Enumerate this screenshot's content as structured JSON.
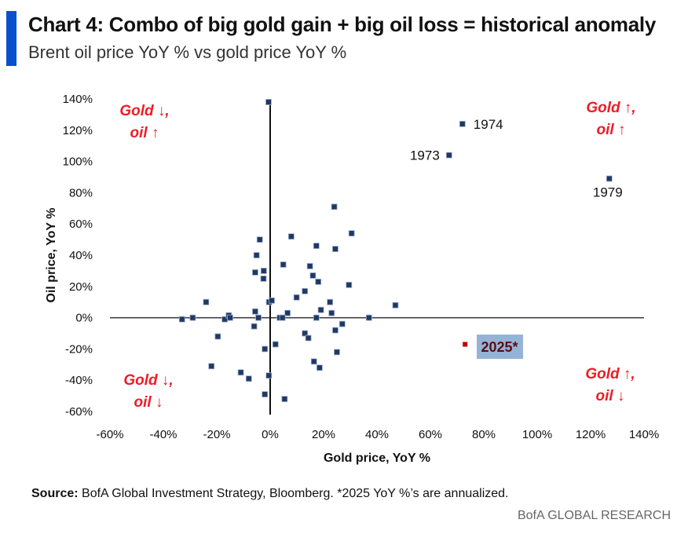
{
  "title": "Chart 4: Combo of big gold gain + big oil loss = historical anomaly",
  "subtitle": "Brent oil price YoY % vs gold price YoY %",
  "colors": {
    "accent_bar": "#0b4fd1",
    "marker": "#1f3864",
    "highlight_marker": "#c00000",
    "highlight_box": "#95b3d7",
    "quadrant_text": "#ee1c25"
  },
  "chart_data": {
    "type": "scatter",
    "title": "Chart 4: Combo of big gold gain + big oil loss = historical anomaly",
    "xlabel": "Gold price, YoY %",
    "ylabel": "Oil price, YoY %",
    "xlim": [
      -60,
      140
    ],
    "ylim": [
      -60,
      140
    ],
    "x_ticks": [
      "-60%",
      "-40%",
      "-20%",
      "0%",
      "20%",
      "40%",
      "60%",
      "80%",
      "100%",
      "120%",
      "140%"
    ],
    "y_ticks": [
      "140%",
      "120%",
      "100%",
      "80%",
      "60%",
      "40%",
      "20%",
      "0%",
      "-20%",
      "-40%",
      "-60%"
    ],
    "grid": false,
    "points": [
      [
        24,
        71
      ],
      [
        30.5,
        54
      ],
      [
        -3.9,
        50
      ],
      [
        7.9,
        52
      ],
      [
        17.3,
        46
      ],
      [
        24.4,
        44
      ],
      [
        -5.1,
        40
      ],
      [
        4.9,
        34
      ],
      [
        14.9,
        33
      ],
      [
        -5.6,
        29
      ],
      [
        -2.4,
        30
      ],
      [
        -2.5,
        25
      ],
      [
        16,
        27
      ],
      [
        18,
        23
      ],
      [
        29.5,
        21
      ],
      [
        13,
        17
      ],
      [
        9.9,
        13
      ],
      [
        -24,
        10
      ],
      [
        -0.4,
        10
      ],
      [
        0.6,
        11
      ],
      [
        22.4,
        10
      ],
      [
        46.9,
        8
      ],
      [
        -5.6,
        4
      ],
      [
        6.5,
        3
      ],
      [
        19,
        5
      ],
      [
        23,
        3
      ],
      [
        -33,
        -1
      ],
      [
        -29,
        0
      ],
      [
        -17,
        -1
      ],
      [
        -15.5,
        1.5
      ],
      [
        -15,
        0
      ],
      [
        -4.4,
        0
      ],
      [
        3.6,
        0
      ],
      [
        4.6,
        0
      ],
      [
        17.3,
        0
      ],
      [
        37,
        0
      ],
      [
        -6,
        -5.5
      ],
      [
        27,
        -4
      ],
      [
        24.4,
        -8
      ],
      [
        -19.6,
        -12
      ],
      [
        13,
        -10
      ],
      [
        14.3,
        -13
      ],
      [
        2,
        -17
      ],
      [
        -2,
        -20
      ],
      [
        25,
        -22
      ],
      [
        -22,
        -31
      ],
      [
        16.4,
        -28
      ],
      [
        18.5,
        -32
      ],
      [
        -11,
        -35
      ],
      [
        -8,
        -39
      ],
      [
        -0.5,
        -37
      ],
      [
        -2,
        -49
      ],
      [
        5.4,
        -52
      ],
      [
        -0.6,
        138
      ]
    ],
    "labeled_points": [
      {
        "label": "1973",
        "x": 67,
        "y": 104
      },
      {
        "label": "1974",
        "x": 72,
        "y": 124
      },
      {
        "label": "1979",
        "x": 127,
        "y": 89
      }
    ],
    "highlight": {
      "label": "2025*",
      "x": 73,
      "y": -17
    },
    "annotations": {
      "top_left": [
        "Gold ↓,",
        "oil ↑"
      ],
      "top_right": [
        "Gold ↑,",
        "oil ↑"
      ],
      "bottom_left": [
        "Gold ↓,",
        "oil ↓"
      ],
      "bottom_right": [
        "Gold ↑,",
        "oil ↓"
      ]
    }
  },
  "source_label": "Source:",
  "source_text": " BofA Global Investment Strategy, Bloomberg. *2025 YoY %’s are annualized.",
  "brand": "BofA GLOBAL RESEARCH"
}
